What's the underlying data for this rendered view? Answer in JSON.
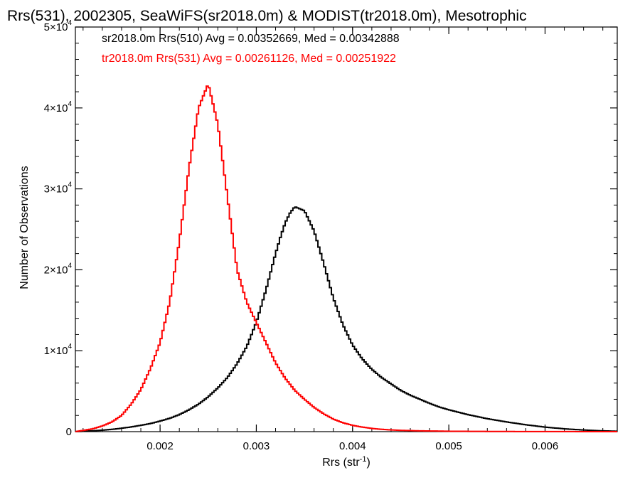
{
  "chart_data": {
    "type": "line",
    "step": true,
    "title": "Rrs(531), 2002305, SeaWiFS(sr2018.0m) & MODIST(tr2018.0m), Mesotrophic",
    "xlabel": "Rrs (str",
    "xlabel_sup": "-1",
    "xlabel_end": ")",
    "ylabel": "Number of Observations",
    "xlim": [
      0.00112,
      0.00675
    ],
    "ylim": [
      0,
      50000
    ],
    "x_ticks": [
      {
        "value": 0.002,
        "label": "0.002"
      },
      {
        "value": 0.003,
        "label": "0.003"
      },
      {
        "value": 0.004,
        "label": "0.004"
      },
      {
        "value": 0.005,
        "label": "0.005"
      },
      {
        "value": 0.006,
        "label": "0.006"
      }
    ],
    "y_ticks": [
      {
        "value": 0,
        "mant": "0",
        "exp": ""
      },
      {
        "value": 10000,
        "mant": "1×10",
        "exp": "4"
      },
      {
        "value": 20000,
        "mant": "2×10",
        "exp": "4"
      },
      {
        "value": 30000,
        "mant": "3×10",
        "exp": "4"
      },
      {
        "value": 40000,
        "mant": "4×10",
        "exp": "4"
      },
      {
        "value": 50000,
        "mant": "5×10",
        "exp": "4"
      }
    ],
    "legend_placement": "top-left",
    "series": [
      {
        "name": "sr2018.0m Rrs(510) Avg = 0.00352669, Med = 0.00342888",
        "color": "#000000",
        "x": [
          0.00112,
          0.0012,
          0.0013,
          0.0014,
          0.0015,
          0.0016,
          0.0017,
          0.0018,
          0.0019,
          0.002,
          0.0021,
          0.0022,
          0.0023,
          0.0024,
          0.0025,
          0.0026,
          0.0027,
          0.0028,
          0.0029,
          0.003,
          0.0031,
          0.0032,
          0.00325,
          0.0033,
          0.00335,
          0.0034,
          0.0035,
          0.0036,
          0.0037,
          0.0038,
          0.0039,
          0.004,
          0.0041,
          0.0042,
          0.0043,
          0.0044,
          0.0045,
          0.0046,
          0.0047,
          0.0048,
          0.0049,
          0.005,
          0.0052,
          0.0054,
          0.0056,
          0.0058,
          0.006,
          0.0062,
          0.0064,
          0.0066,
          0.00675
        ],
        "y": [
          0,
          50,
          100,
          180,
          280,
          420,
          580,
          780,
          1000,
          1300,
          1650,
          2100,
          2700,
          3400,
          4300,
          5400,
          6700,
          8400,
          10500,
          13500,
          17500,
          22000,
          24000,
          25800,
          27000,
          27800,
          27300,
          24800,
          20800,
          16500,
          13200,
          10700,
          9000,
          7700,
          6700,
          5900,
          5100,
          4500,
          4000,
          3500,
          3050,
          2700,
          2100,
          1600,
          1200,
          850,
          560,
          350,
          200,
          100,
          50
        ]
      },
      {
        "name": "tr2018.0m Rrs(531) Avg = 0.00261126, Med = 0.00251922",
        "color": "#ff0000",
        "x": [
          0.00112,
          0.0012,
          0.0013,
          0.0014,
          0.0015,
          0.0016,
          0.0017,
          0.0018,
          0.0019,
          0.002,
          0.0021,
          0.0022,
          0.0023,
          0.0024,
          0.0025,
          0.0026,
          0.0027,
          0.0028,
          0.0029,
          0.003,
          0.0031,
          0.0032,
          0.0033,
          0.0034,
          0.0035,
          0.0036,
          0.0037,
          0.0038,
          0.0039,
          0.004,
          0.0041,
          0.0042,
          0.0043,
          0.0044,
          0.0045,
          0.0047,
          0.005,
          0.0055,
          0.006,
          0.00675
        ],
        "y": [
          0,
          150,
          350,
          700,
          1200,
          2000,
          3400,
          5200,
          7800,
          11000,
          16000,
          23500,
          32500,
          40000,
          43000,
          38000,
          29000,
          20000,
          16000,
          13500,
          11000,
          8500,
          6600,
          5100,
          4000,
          3000,
          2200,
          1550,
          1100,
          780,
          560,
          400,
          290,
          210,
          160,
          100,
          50,
          20,
          10,
          0
        ]
      }
    ]
  }
}
